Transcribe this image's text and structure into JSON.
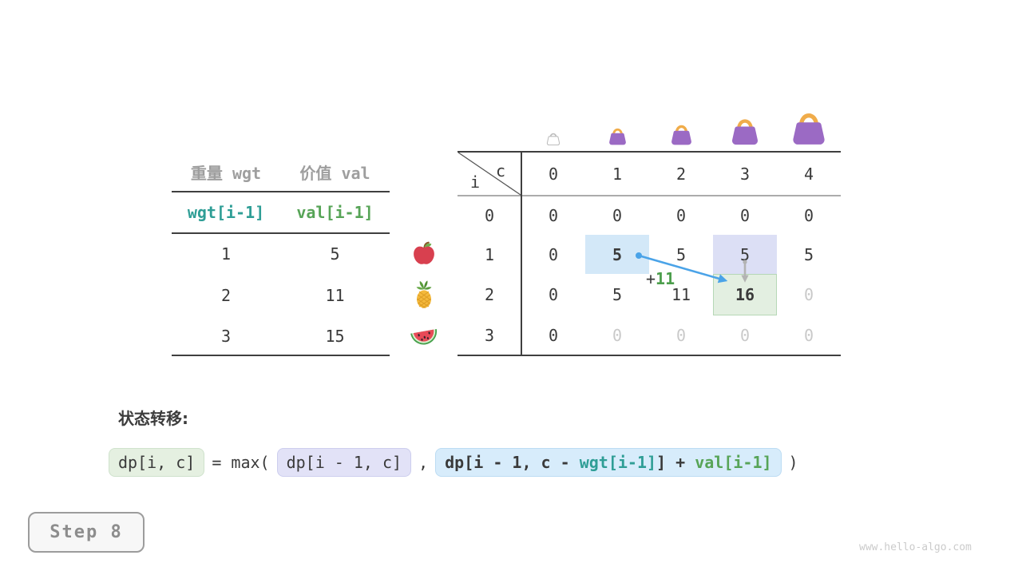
{
  "page": {
    "background": "#ffffff",
    "watermark": "www.hello-algo.com"
  },
  "step_badge": {
    "label": "Step 8"
  },
  "items_table": {
    "headers": [
      "重量 wgt",
      "价值 val"
    ],
    "index_row": [
      "wgt[i-1]",
      "val[i-1]"
    ],
    "rows": [
      [
        "1",
        "5"
      ],
      [
        "2",
        "11"
      ],
      [
        "3",
        "15"
      ]
    ]
  },
  "dp_table": {
    "corner": {
      "top_right": "c",
      "bottom_left": "i"
    },
    "col_headers": [
      "0",
      "1",
      "2",
      "3",
      "4"
    ],
    "row_headers": [
      "0",
      "1",
      "2",
      "3"
    ],
    "cells": [
      [
        "0",
        "0",
        "0",
        "0",
        "0"
      ],
      [
        "0",
        "5",
        "5",
        "5",
        "5"
      ],
      [
        "0",
        "5",
        "11",
        "16",
        "0"
      ],
      [
        "0",
        "0",
        "0",
        "0",
        "0"
      ]
    ],
    "cell_flags": [
      [
        "",
        "",
        "",
        "",
        ""
      ],
      [
        "",
        "bold bg-blue",
        "",
        "bg-lavender",
        ""
      ],
      [
        "",
        "",
        "",
        "bold bg-green",
        "faded"
      ],
      [
        "",
        "faded",
        "faded",
        "faded",
        "faded"
      ]
    ],
    "capacity_icons": [
      "bag-outline-icon",
      "bag-icon-size-1",
      "bag-icon-size-2",
      "bag-icon-size-3",
      "bag-icon-size-4"
    ],
    "item_icons": [
      "apple-icon",
      "pineapple-icon",
      "watermelon-icon"
    ]
  },
  "annotation": {
    "plus": "+",
    "value": "11"
  },
  "transition": {
    "label": "状态转移:",
    "result": "dp[i, c]",
    "operator": "= max(",
    "keep": "dp[i - 1, c]",
    "separator": ",",
    "take_segments": [
      {
        "text": "dp[i - 1, c - ",
        "color": "dark"
      },
      {
        "text": "wgt[i-1]",
        "color": "teal"
      },
      {
        "text": "] + ",
        "color": "dark"
      },
      {
        "text": "val[i-1]",
        "color": "green"
      }
    ],
    "close": ")"
  },
  "colors": {
    "teal": "#2f9e96",
    "green": "#57a457",
    "gray_header": "#9e9e9e",
    "text_dark": "#3a3a3a",
    "faded": "#c9c9c9",
    "arrow_blue": "#4aa3e8",
    "arrow_gray": "#b3b3b3",
    "highlight_blue": "#d3e8f8",
    "highlight_lavender": "#dcdff5",
    "highlight_green_bg": "#e3efe1",
    "highlight_green_border": "#b6d7b6",
    "bag_purple": "#9b6ac4",
    "bag_handle": "#f0ac4a"
  }
}
